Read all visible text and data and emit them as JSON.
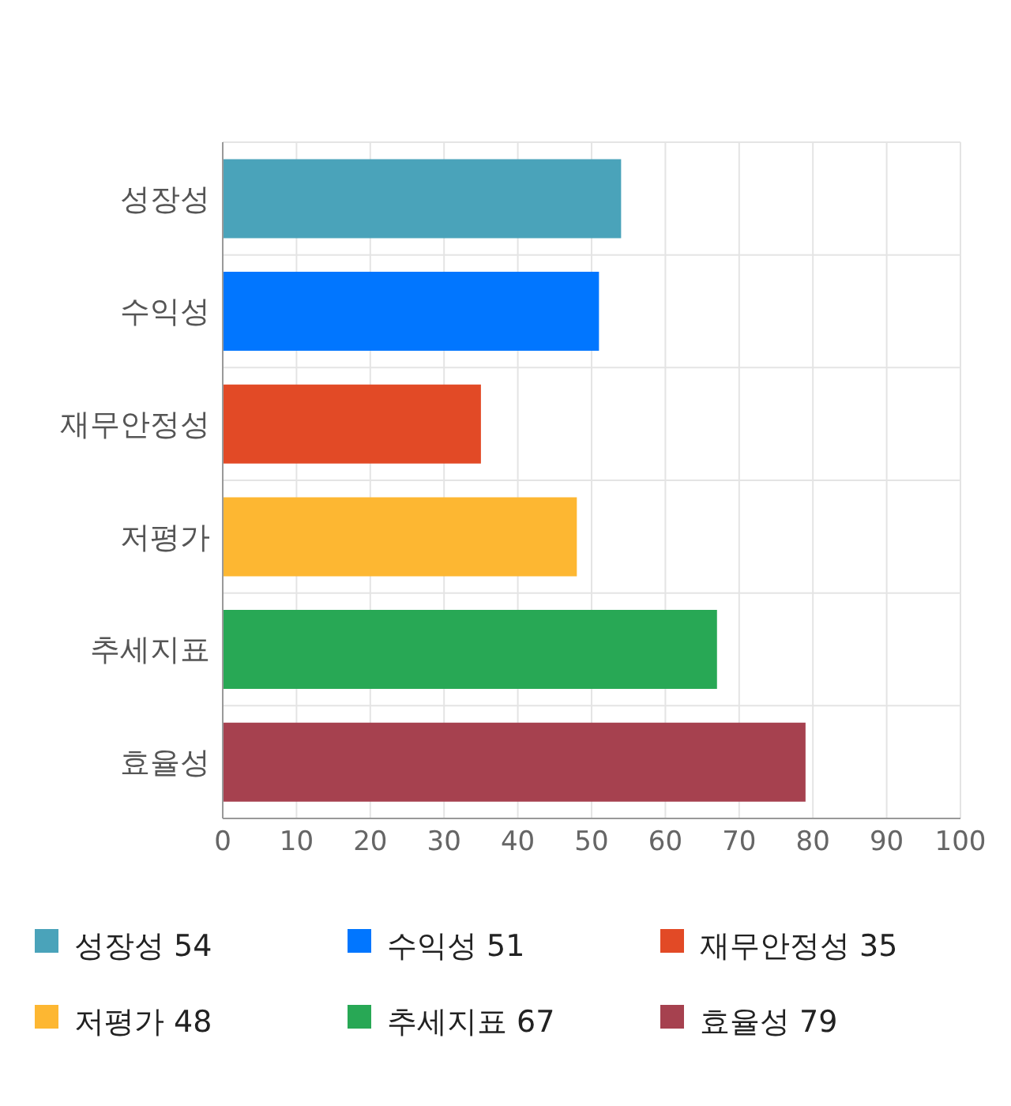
{
  "chart_data": {
    "type": "bar",
    "orientation": "horizontal",
    "categories": [
      "성장성",
      "수익성",
      "재무안정성",
      "저평가",
      "추세지표",
      "효율성"
    ],
    "values": [
      54,
      51,
      35,
      48,
      67,
      79
    ],
    "colors": [
      "#4aa3ba",
      "#0176ff",
      "#e24a26",
      "#fdb732",
      "#28a855",
      "#a6414f"
    ],
    "xlim": [
      0,
      100
    ],
    "xticks": [
      0,
      10,
      20,
      30,
      40,
      50,
      60,
      70,
      80,
      90,
      100
    ],
    "grid": true,
    "annotations": [
      "성장성 54",
      "수익성 51",
      "재무안정성 35",
      "저평가 48",
      "추세지표 67",
      "효율성 79"
    ]
  }
}
